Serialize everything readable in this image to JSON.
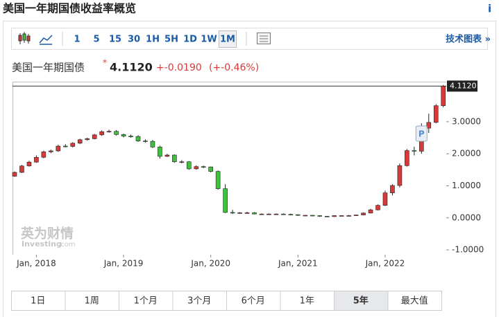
{
  "page_title": "美国一年期国债收益率概览",
  "info": "i",
  "toolbar": {
    "intervals": [
      "1",
      "5",
      "15",
      "30",
      "1H",
      "5H",
      "1D",
      "1W",
      "1M"
    ],
    "selected": "1M",
    "tech_chart": "技术图表 »"
  },
  "header": {
    "name": "美国一年期国债",
    "change": "+-0.0190",
    "change_pct": "(+-0.46%)"
  },
  "chart_data": {
    "type": "candlestick",
    "up_color": "#d63a3a",
    "down_color": "#3fc03f",
    "x": [
      "2017-10",
      "2017-11",
      "2017-12",
      "2018-01",
      "2018-02",
      "2018-03",
      "2018-04",
      "2018-05",
      "2018-06",
      "2018-07",
      "2018-08",
      "2018-09",
      "2018-10",
      "2018-11",
      "2018-12",
      "2019-01",
      "2019-02",
      "2019-03",
      "2019-04",
      "2019-05",
      "2019-06",
      "2019-07",
      "2019-08",
      "2019-09",
      "2019-10",
      "2019-11",
      "2019-12",
      "2020-01",
      "2020-02",
      "2020-03",
      "2020-04",
      "2020-05",
      "2020-06",
      "2020-07",
      "2020-08",
      "2020-09",
      "2020-10",
      "2020-11",
      "2020-12",
      "2021-01",
      "2021-02",
      "2021-03",
      "2021-04",
      "2021-05",
      "2021-06",
      "2021-07",
      "2021-08",
      "2021-09",
      "2021-10",
      "2021-11",
      "2021-12",
      "2022-01",
      "2022-02",
      "2022-03",
      "2022-04",
      "2022-05",
      "2022-06",
      "2022-07",
      "2022-08",
      "2022-09"
    ],
    "open": [
      1.3,
      1.42,
      1.62,
      1.74,
      1.89,
      2.06,
      2.09,
      2.24,
      2.23,
      2.33,
      2.44,
      2.47,
      2.59,
      2.69,
      2.7,
      2.6,
      2.55,
      2.54,
      2.4,
      2.39,
      2.21,
      1.92,
      1.96,
      1.75,
      1.75,
      1.53,
      1.6,
      1.59,
      1.45,
      0.91,
      0.17,
      0.16,
      0.16,
      0.16,
      0.12,
      0.12,
      0.12,
      0.12,
      0.11,
      0.1,
      0.08,
      0.08,
      0.07,
      0.05,
      0.04,
      0.07,
      0.07,
      0.07,
      0.09,
      0.15,
      0.25,
      0.39,
      0.78,
      1.01,
      1.63,
      2.1,
      2.08,
      2.8,
      2.98,
      3.5
    ],
    "high": [
      1.45,
      1.65,
      1.78,
      1.95,
      2.1,
      2.13,
      2.28,
      2.3,
      2.36,
      2.47,
      2.5,
      2.62,
      2.73,
      2.75,
      2.74,
      2.63,
      2.6,
      2.58,
      2.45,
      2.43,
      2.25,
      2.0,
      1.98,
      1.8,
      1.77,
      1.64,
      1.63,
      1.6,
      1.48,
      1.05,
      0.25,
      0.18,
      0.19,
      0.18,
      0.14,
      0.14,
      0.14,
      0.14,
      0.13,
      0.11,
      0.09,
      0.09,
      0.08,
      0.06,
      0.08,
      0.08,
      0.09,
      0.1,
      0.17,
      0.28,
      0.42,
      0.85,
      1.05,
      1.7,
      2.15,
      2.22,
      2.95,
      3.25,
      3.55,
      4.15
    ],
    "low": [
      1.28,
      1.4,
      1.6,
      1.72,
      1.86,
      2.02,
      2.06,
      2.2,
      2.2,
      2.3,
      2.41,
      2.45,
      2.56,
      2.66,
      2.57,
      2.51,
      2.5,
      2.37,
      2.35,
      2.18,
      1.85,
      1.9,
      1.72,
      1.7,
      1.5,
      1.5,
      1.55,
      1.42,
      0.88,
      0.15,
      0.12,
      0.13,
      0.13,
      0.11,
      0.1,
      0.1,
      0.1,
      0.1,
      0.08,
      0.06,
      0.06,
      0.05,
      0.03,
      0.03,
      0.03,
      0.05,
      0.05,
      0.06,
      0.08,
      0.14,
      0.23,
      0.37,
      0.7,
      0.95,
      1.6,
      1.95,
      2.0,
      2.65,
      2.95,
      3.45
    ],
    "close": [
      1.42,
      1.62,
      1.74,
      1.89,
      2.06,
      2.09,
      2.24,
      2.23,
      2.33,
      2.44,
      2.47,
      2.59,
      2.69,
      2.7,
      2.6,
      2.55,
      2.54,
      2.4,
      2.39,
      2.21,
      1.92,
      1.96,
      1.75,
      1.75,
      1.53,
      1.6,
      1.59,
      1.45,
      0.91,
      0.17,
      0.16,
      0.16,
      0.16,
      0.12,
      0.12,
      0.12,
      0.12,
      0.11,
      0.1,
      0.08,
      0.08,
      0.07,
      0.05,
      0.04,
      0.07,
      0.07,
      0.07,
      0.09,
      0.15,
      0.25,
      0.39,
      0.78,
      1.01,
      1.63,
      2.1,
      2.08,
      2.8,
      2.98,
      3.5,
      4.112
    ],
    "last_price": {
      "value": 4.112,
      "label": "4.1120"
    },
    "ylim": [
      -1.15,
      4.25
    ],
    "yticks": [
      {
        "value": 3,
        "label": "3.0000"
      },
      {
        "value": 2,
        "label": "2.0000"
      },
      {
        "value": 1,
        "label": "1.0000"
      },
      {
        "value": 0,
        "label": "0.0000"
      },
      {
        "value": -1,
        "label": "-1.0000"
      }
    ],
    "xticks": [
      {
        "value": "2018-01",
        "label": "Jan, 2018"
      },
      {
        "value": "2019-01",
        "label": "Jan, 2019"
      },
      {
        "value": "2020-01",
        "label": "Jan, 2020"
      },
      {
        "value": "2021-01",
        "label": "Jan, 2021"
      },
      {
        "value": "2022-01",
        "label": "Jan, 2022"
      }
    ],
    "marker": {
      "x": "2022-06",
      "label": "P"
    },
    "watermark": {
      "brand": "英为财情",
      "site": "Investing",
      ".com": ".com"
    }
  },
  "range_buttons": {
    "items": [
      "1日",
      "1周",
      "1个月",
      "3个月",
      "6个月",
      "1年",
      "5年",
      "最大值"
    ],
    "selected": "5年"
  }
}
